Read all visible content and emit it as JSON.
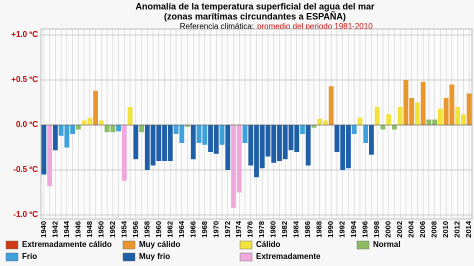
{
  "chart_data": {
    "type": "bar",
    "title": "Anomalía de la temperatura superficial del agua del mar",
    "subtitle": "(zonas marítimas circundantes a ESPAÑA)",
    "reference_label": "Referencia climática:",
    "reference_value": "promedio del periodo 1981-2010",
    "categories": [
      "1940",
      null,
      "1942",
      null,
      "1944",
      null,
      "1946",
      null,
      "1948",
      null,
      "1950",
      null,
      "1952",
      null,
      "1954",
      null,
      "1956",
      null,
      "1958",
      null,
      "1960",
      null,
      "1962",
      null,
      "1964",
      null,
      "1966",
      null,
      "1968",
      null,
      "1970",
      null,
      "1972",
      null,
      "1974",
      null,
      "1976",
      null,
      "1978",
      null,
      "1980",
      null,
      "1982",
      null,
      "1984",
      null,
      "1986",
      null,
      "1988",
      null,
      "1990",
      null,
      "1992",
      null,
      "1994",
      null,
      "1996",
      null,
      "1998",
      null,
      "2000",
      null,
      "2002",
      null,
      "2004",
      null,
      "2006",
      null,
      "2008",
      null,
      "2010",
      null,
      "2012",
      null,
      "2014"
    ],
    "values": [
      -0.55,
      -0.68,
      -0.28,
      -0.12,
      -0.25,
      -0.1,
      -0.05,
      0.05,
      0.08,
      0.38,
      0.05,
      -0.08,
      -0.08,
      -0.07,
      -0.62,
      0.2,
      -0.38,
      -0.08,
      -0.5,
      -0.45,
      -0.4,
      -0.4,
      -0.4,
      -0.1,
      -0.2,
      -0.02,
      -0.38,
      -0.2,
      -0.22,
      -0.3,
      -0.32,
      -0.22,
      -0.5,
      -0.92,
      -0.75,
      -0.2,
      -0.45,
      -0.58,
      -0.48,
      -0.35,
      -0.42,
      -0.4,
      -0.38,
      -0.28,
      -0.3,
      -0.1,
      -0.45,
      -0.03,
      0.07,
      0.05,
      0.43,
      -0.3,
      -0.5,
      -0.48,
      -0.1,
      0.08,
      -0.2,
      -0.33,
      0.2,
      -0.05,
      0.12,
      -0.05,
      0.2,
      0.5,
      0.3,
      0.25,
      0.48,
      0.06,
      0.06,
      0.18,
      0.3,
      0.45,
      0.2,
      0.12,
      0.35
    ],
    "colors": [
      "#1f5fa8",
      "#f0a8dc",
      "#1f5fa8",
      "#3fa0dc",
      "#3fa0dc",
      "#3fa0dc",
      "#8cbc64",
      "#f2e33a",
      "#f2e33a",
      "#e8962e",
      "#f2e33a",
      "#8cbc64",
      "#8cbc64",
      "#3fa0dc",
      "#f0a8dc",
      "#f2e33a",
      "#1f5fa8",
      "#8cbc64",
      "#1f5fa8",
      "#1f5fa8",
      "#1f5fa8",
      "#1f5fa8",
      "#1f5fa8",
      "#3fa0dc",
      "#3fa0dc",
      "#8cbc64",
      "#1f5fa8",
      "#3fa0dc",
      "#3fa0dc",
      "#1f5fa8",
      "#1f5fa8",
      "#3fa0dc",
      "#1f5fa8",
      "#f0a8dc",
      "#f0a8dc",
      "#3fa0dc",
      "#1f5fa8",
      "#1f5fa8",
      "#1f5fa8",
      "#1f5fa8",
      "#1f5fa8",
      "#1f5fa8",
      "#1f5fa8",
      "#1f5fa8",
      "#1f5fa8",
      "#3fa0dc",
      "#1f5fa8",
      "#8cbc64",
      "#f2e33a",
      "#f2e33a",
      "#e8962e",
      "#1f5fa8",
      "#1f5fa8",
      "#1f5fa8",
      "#3fa0dc",
      "#f2e33a",
      "#3fa0dc",
      "#1f5fa8",
      "#f2e33a",
      "#8cbc64",
      "#f2e33a",
      "#8cbc64",
      "#f2e33a",
      "#e8962e",
      "#e8962e",
      "#f2e33a",
      "#e8962e",
      "#8cbc64",
      "#8cbc64",
      "#f2e33a",
      "#e8962e",
      "#e8962e",
      "#f2e33a",
      "#f2e33a",
      "#e8962e"
    ],
    "legend": [
      {
        "name": "Extremadamente cálido",
        "color": "#d23c14"
      },
      {
        "name": "Muy cálido",
        "color": "#e8962e"
      },
      {
        "name": "Cálido",
        "color": "#f2e33a"
      },
      {
        "name": "Normal",
        "color": "#8cbc64"
      },
      {
        "name": "Frío",
        "color": "#3fa0dc"
      },
      {
        "name": "Muy frío",
        "color": "#1f5fa8"
      },
      {
        "name": "Extremadamente",
        "color": "#f0a8dc"
      }
    ],
    "ylim": [
      -1.0,
      1.0
    ],
    "yticks": [
      {
        "value": 1.0,
        "label": "+1.0 ºC"
      },
      {
        "value": 0.5,
        "label": "+0.5 ºC"
      },
      {
        "value": 0.0,
        "label": "0.0 ºC"
      },
      {
        "value": -0.5,
        "label": "-0.5 ºC"
      },
      {
        "value": -1.0,
        "label": "-1.0 ºC"
      }
    ],
    "grid": true
  }
}
